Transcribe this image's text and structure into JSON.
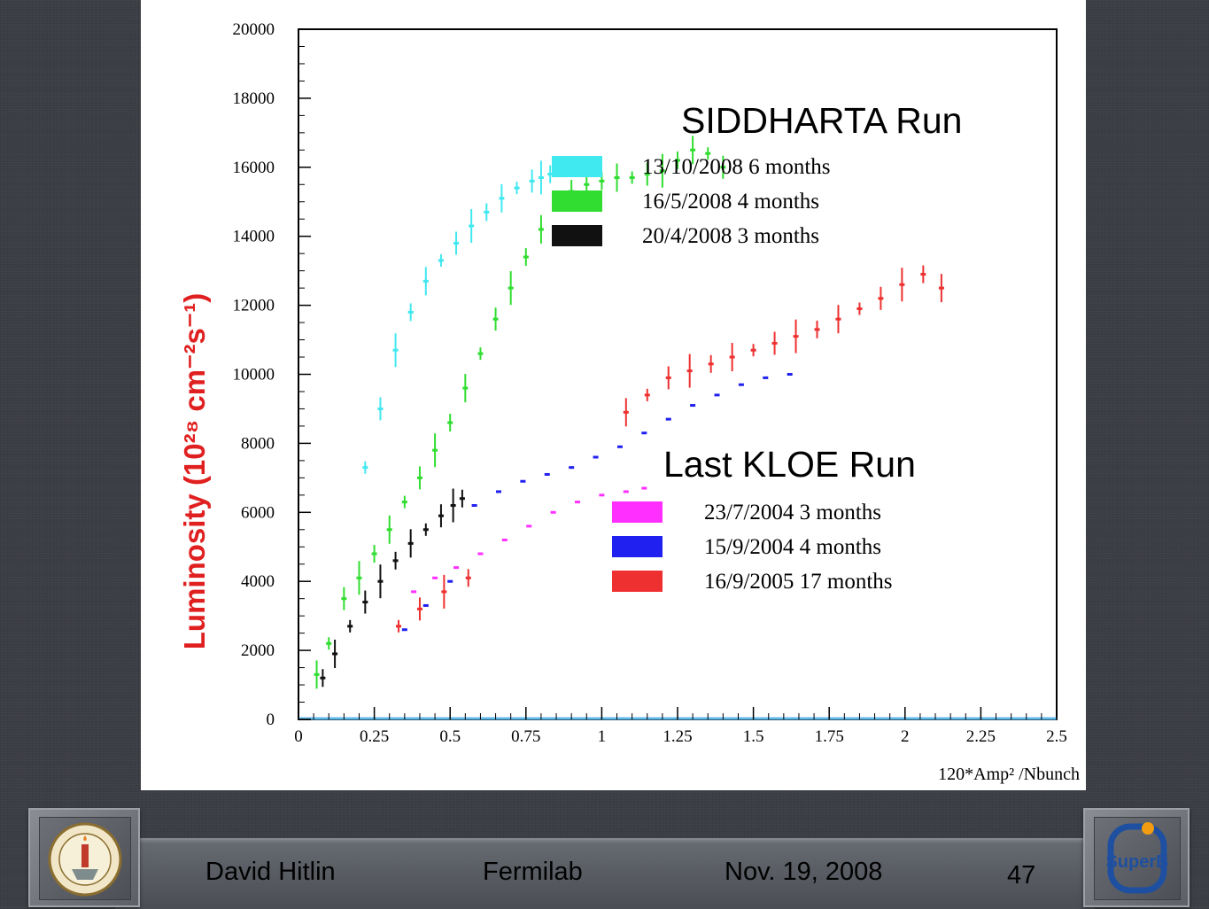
{
  "footer": {
    "author": "David Hitlin",
    "venue": "Fermilab",
    "date": "Nov. 19, 2008",
    "page": "47"
  },
  "logos": {
    "left": "caltech-seal",
    "right": "superb-logo",
    "right_text": "SuperB"
  },
  "chart_data": {
    "type": "scatter",
    "xlabel": "120*Amp² /Nbunch",
    "ylabel": "Luminosity  (10²⁸ cm⁻²s⁻¹)",
    "xlim": [
      0,
      2.5
    ],
    "ylim": [
      0,
      20000
    ],
    "xticks": [
      "0",
      "0.25",
      "0.5",
      "0.75",
      "1",
      "1.25",
      "1.5",
      "1.75",
      "2",
      "2.25",
      "2.5"
    ],
    "yticks": [
      "0",
      "2000",
      "4000",
      "6000",
      "8000",
      "10000",
      "12000",
      "14000",
      "16000",
      "18000",
      "20000"
    ],
    "grid": false,
    "annotations": [
      "SIDDHARTA Run",
      "Last KLOE Run"
    ],
    "groups": [
      {
        "title": "SIDDHARTA Run",
        "legend_position": "top-center",
        "series": [
          "13/10/2008 6 months",
          "16/5/2008 4 months",
          "20/4/2008 3 months"
        ]
      },
      {
        "title": "Last KLOE Run",
        "legend_position": "center-right",
        "series": [
          "23/7/2004 3 months",
          "15/9/2004 4 months",
          "16/9/2005 17 months"
        ]
      }
    ],
    "series": [
      {
        "name": "13/10/2008 6 months",
        "color": "#40e8f0",
        "errorbars": true,
        "x": [
          0.22,
          0.27,
          0.32,
          0.37,
          0.42,
          0.47,
          0.52,
          0.57,
          0.62,
          0.67,
          0.72,
          0.77,
          0.8,
          0.83
        ],
        "y": [
          7300,
          9000,
          10700,
          11800,
          12700,
          13300,
          13800,
          14300,
          14700,
          15100,
          15400,
          15600,
          15700,
          15800
        ]
      },
      {
        "name": "16/5/2008 4 months",
        "color": "#30dd30",
        "errorbars": true,
        "x": [
          0.06,
          0.1,
          0.15,
          0.2,
          0.25,
          0.3,
          0.35,
          0.4,
          0.45,
          0.5,
          0.55,
          0.6,
          0.65,
          0.7,
          0.75,
          0.8,
          0.85,
          0.9,
          0.95,
          1.0,
          1.05,
          1.1,
          1.15,
          1.2,
          1.25,
          1.3,
          1.35,
          1.4
        ],
        "y": [
          1300,
          2200,
          3500,
          4100,
          4800,
          5500,
          6300,
          7000,
          7800,
          8600,
          9600,
          10600,
          11600,
          12500,
          13400,
          14200,
          14900,
          15300,
          15500,
          15600,
          15700,
          15700,
          15800,
          15900,
          16200,
          16500,
          16400,
          16000
        ]
      },
      {
        "name": "20/4/2008 3 months",
        "color": "#111111",
        "errorbars": true,
        "x": [
          0.08,
          0.12,
          0.17,
          0.22,
          0.27,
          0.32,
          0.37,
          0.42,
          0.47,
          0.51,
          0.54
        ],
        "y": [
          1200,
          1900,
          2700,
          3400,
          4000,
          4600,
          5100,
          5500,
          5900,
          6200,
          6400
        ]
      },
      {
        "name": "23/7/2004 3 months",
        "color": "#ff30ff",
        "errorbars": false,
        "x": [
          0.38,
          0.45,
          0.52,
          0.6,
          0.68,
          0.76,
          0.84,
          0.92,
          1.0,
          1.08,
          1.14
        ],
        "y": [
          3700,
          4100,
          4400,
          4800,
          5200,
          5600,
          6000,
          6300,
          6500,
          6600,
          6700
        ]
      },
      {
        "name": "15/9/2004 4 months",
        "color": "#2020f0",
        "errorbars": false,
        "x": [
          0.35,
          0.42,
          0.5,
          0.58,
          0.66,
          0.74,
          0.82,
          0.9,
          0.98,
          1.06,
          1.14,
          1.22,
          1.3,
          1.38,
          1.46,
          1.54,
          1.62
        ],
        "y": [
          2600,
          3300,
          4000,
          6200,
          6600,
          6900,
          7100,
          7300,
          7600,
          7900,
          8300,
          8700,
          9100,
          9400,
          9700,
          9900,
          10000
        ]
      },
      {
        "name": "16/9/2005 17 months",
        "color": "#ee3030",
        "errorbars": true,
        "x": [
          0.33,
          0.4,
          0.48,
          0.56,
          1.08,
          1.15,
          1.22,
          1.29,
          1.36,
          1.43,
          1.5,
          1.57,
          1.64,
          1.71,
          1.78,
          1.85,
          1.92,
          1.99,
          2.06,
          2.12
        ],
        "y": [
          2700,
          3200,
          3700,
          4100,
          8900,
          9400,
          9900,
          10100,
          10300,
          10500,
          10700,
          10900,
          11100,
          11300,
          11600,
          11900,
          12200,
          12600,
          12900,
          12500
        ]
      }
    ]
  }
}
